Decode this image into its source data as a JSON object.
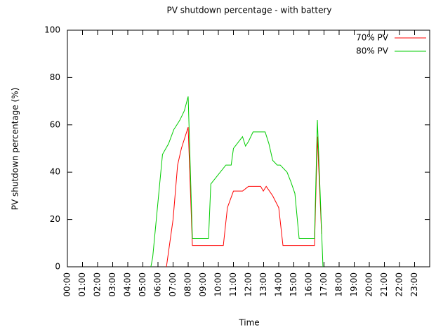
{
  "chart_data": {
    "type": "line",
    "title": "PV shutdown percentage - with battery",
    "xlabel": "Time",
    "ylabel": "PV shutdown percentage (%)",
    "xlim": [
      0,
      24
    ],
    "ylim": [
      0,
      100
    ],
    "yticks": [
      0,
      20,
      40,
      60,
      80,
      100
    ],
    "xticks": [
      {
        "value": 0,
        "label": "00:00"
      },
      {
        "value": 1,
        "label": "01:00"
      },
      {
        "value": 2,
        "label": "02:00"
      },
      {
        "value": 3,
        "label": "03:00"
      },
      {
        "value": 4,
        "label": "04:00"
      },
      {
        "value": 5,
        "label": "05:00"
      },
      {
        "value": 6,
        "label": "06:00"
      },
      {
        "value": 7,
        "label": "07:00"
      },
      {
        "value": 8,
        "label": "08:00"
      },
      {
        "value": 9,
        "label": "09:00"
      },
      {
        "value": 10,
        "label": "10:00"
      },
      {
        "value": 11,
        "label": "11:00"
      },
      {
        "value": 12,
        "label": "12:00"
      },
      {
        "value": 13,
        "label": "13:00"
      },
      {
        "value": 14,
        "label": "14:00"
      },
      {
        "value": 15,
        "label": "15:00"
      },
      {
        "value": 16,
        "label": "16:00"
      },
      {
        "value": 17,
        "label": "17:00"
      },
      {
        "value": 18,
        "label": "18:00"
      },
      {
        "value": 19,
        "label": "19:00"
      },
      {
        "value": 20,
        "label": "20:00"
      },
      {
        "value": 21,
        "label": "21:00"
      },
      {
        "value": 22,
        "label": "22:00"
      },
      {
        "value": 23,
        "label": "23:00"
      }
    ],
    "legend": "upper right",
    "series": [
      {
        "name": "70% PV",
        "color": "#ff0000",
        "x": [
          6.56,
          7.0,
          7.3,
          7.55,
          7.8,
          8.0,
          8.28,
          10.33,
          10.6,
          11.0,
          11.6,
          12.0,
          12.8,
          12.98,
          13.17,
          13.6,
          14.0,
          14.28,
          16.37,
          16.56,
          16.84
        ],
        "values": [
          0,
          20,
          43,
          50,
          55,
          59,
          9,
          9,
          25,
          32,
          32,
          34,
          34,
          32,
          34,
          30,
          25,
          9,
          9,
          55,
          14
        ]
      },
      {
        "name": "80% PV",
        "color": "#00cc00",
        "x": [
          5.53,
          5.65,
          6.3,
          6.7,
          7.05,
          7.45,
          7.75,
          8.0,
          8.28,
          9.35,
          9.5,
          10.5,
          10.85,
          11.0,
          11.6,
          11.8,
          12.0,
          12.3,
          13.1,
          13.35,
          13.6,
          13.9,
          14.1,
          14.55,
          14.8,
          15.07,
          15.35,
          16.37,
          16.56,
          16.93
        ],
        "values": [
          0,
          4,
          47.5,
          52,
          58,
          62,
          66,
          72,
          12,
          12,
          35,
          43,
          43,
          50,
          55,
          51,
          53,
          57,
          57,
          52,
          45,
          43,
          43,
          40,
          36,
          31,
          12,
          12,
          62,
          0
        ]
      }
    ]
  }
}
